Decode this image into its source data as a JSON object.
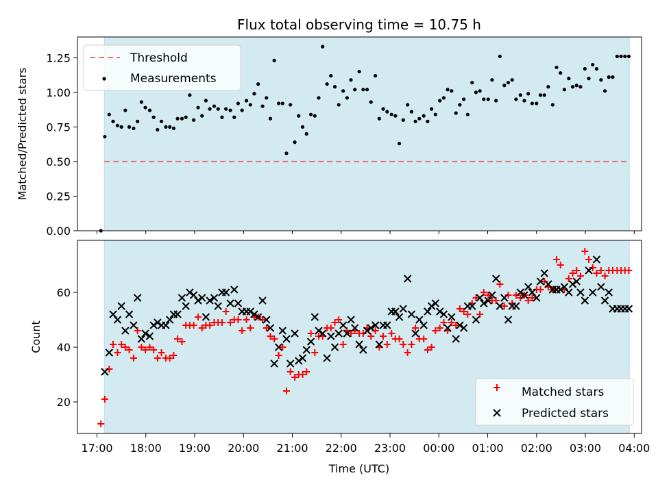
{
  "chart_data": [
    {
      "type": "scatter",
      "title": "Flux total observing time = 10.75 h",
      "xlabel": "",
      "ylabel": "Matched/Predicted stars",
      "xlim_hours": [
        16.6,
        28.15
      ],
      "ylim": [
        0,
        1.4
      ],
      "yticks": [
        0.0,
        0.25,
        0.5,
        0.75,
        1.0,
        1.25
      ],
      "ytick_labels": [
        "0.00",
        "0.25",
        "0.50",
        "0.75",
        "1.00",
        "1.25"
      ],
      "observing_window_hours": [
        17.15,
        27.9
      ],
      "legend": {
        "position": "top-left",
        "entries": [
          "Threshold",
          "Measurements"
        ]
      },
      "threshold": {
        "name": "Threshold",
        "y": 0.5,
        "x_range_hours": [
          17.15,
          27.9
        ],
        "color": "#e8706f",
        "style": "dashed"
      },
      "series": [
        {
          "name": "Measurements",
          "color": "#000000",
          "marker": "dot",
          "x_hours": [
            17.08,
            17.16,
            17.25,
            17.33,
            17.42,
            17.5,
            17.58,
            17.66,
            17.75,
            17.83,
            17.91,
            17.99,
            18.08,
            18.16,
            18.24,
            18.32,
            18.41,
            18.49,
            18.57,
            18.65,
            18.74,
            18.82,
            18.9,
            18.98,
            19.07,
            19.15,
            19.23,
            19.31,
            19.4,
            19.48,
            19.56,
            19.64,
            19.73,
            19.81,
            19.89,
            19.97,
            20.06,
            20.14,
            20.22,
            20.3,
            20.39,
            20.47,
            20.55,
            20.63,
            20.72,
            20.8,
            20.88,
            20.96,
            21.05,
            21.13,
            21.21,
            21.29,
            21.38,
            21.46,
            21.54,
            21.62,
            21.71,
            21.79,
            21.87,
            21.95,
            22.04,
            22.12,
            22.2,
            22.28,
            22.37,
            22.45,
            22.53,
            22.61,
            22.7,
            22.78,
            22.86,
            22.94,
            23.03,
            23.11,
            23.19,
            23.27,
            23.36,
            23.44,
            23.52,
            23.6,
            23.69,
            23.77,
            23.85,
            23.93,
            24.02,
            24.1,
            24.18,
            24.26,
            24.35,
            24.43,
            24.51,
            24.59,
            24.68,
            24.76,
            24.84,
            24.92,
            25.01,
            25.09,
            25.17,
            25.25,
            25.34,
            25.42,
            25.5,
            25.58,
            25.67,
            25.75,
            25.83,
            25.91,
            26.0,
            26.08,
            26.16,
            26.24,
            26.33,
            26.41,
            26.49,
            26.57,
            26.66,
            26.74,
            26.82,
            26.9,
            26.99,
            27.07,
            27.15,
            27.23,
            27.32,
            27.4,
            27.48,
            27.56,
            27.65,
            27.73,
            27.81,
            27.89
          ],
          "y": [
            0.0,
            0.68,
            0.84,
            0.79,
            0.76,
            0.75,
            0.87,
            0.75,
            0.74,
            0.79,
            0.93,
            0.89,
            0.87,
            0.82,
            0.73,
            0.79,
            0.75,
            0.75,
            0.74,
            0.81,
            0.81,
            0.82,
            0.98,
            0.8,
            0.89,
            0.83,
            0.94,
            0.88,
            0.9,
            0.88,
            0.82,
            0.88,
            0.87,
            0.82,
            0.92,
            0.87,
            0.94,
            0.91,
            0.99,
            1.06,
            0.9,
            0.96,
            0.81,
            1.23,
            0.92,
            0.92,
            0.56,
            0.91,
            0.64,
            0.83,
            0.75,
            0.7,
            0.84,
            0.83,
            0.96,
            1.33,
            1.06,
            1.12,
            1.04,
            0.91,
            1.01,
            0.96,
            1.09,
            1.02,
            1.15,
            1.02,
            1.02,
            0.93,
            1.12,
            0.81,
            0.88,
            0.86,
            0.84,
            0.83,
            0.63,
            0.8,
            0.91,
            0.86,
            0.79,
            0.81,
            0.83,
            0.79,
            0.88,
            0.84,
            0.94,
            0.96,
            1.02,
            1.01,
            0.85,
            0.91,
            0.95,
            0.84,
            1.07,
            1.0,
            1.01,
            0.95,
            0.95,
            1.09,
            0.94,
            1.26,
            1.05,
            1.07,
            1.09,
            0.95,
            0.98,
            0.94,
            0.99,
            0.92,
            0.92,
            0.98,
            0.98,
            1.04,
            0.91,
            1.18,
            1.14,
            1.02,
            1.1,
            1.04,
            1.05,
            1.04,
            1.17,
            1.1,
            1.2,
            1.17,
            1.09,
            1.01,
            1.11,
            1.11,
            1.26,
            1.26,
            1.26,
            1.26
          ]
        }
      ]
    },
    {
      "type": "scatter",
      "title": "",
      "xlabel": "Time (UTC)",
      "ylabel": "Count",
      "xlim_hours": [
        16.6,
        28.15
      ],
      "ylim": [
        8.5,
        79
      ],
      "yticks": [
        20,
        40,
        60
      ],
      "ytick_labels": [
        "20",
        "40",
        "60"
      ],
      "xticks_hours": [
        17,
        18,
        19,
        20,
        21,
        22,
        23,
        24,
        25,
        26,
        27,
        28
      ],
      "xtick_labels": [
        "17:00",
        "18:00",
        "19:00",
        "20:00",
        "21:00",
        "22:00",
        "23:00",
        "00:00",
        "01:00",
        "02:00",
        "03:00",
        "04:00"
      ],
      "observing_window_hours": [
        17.15,
        27.9
      ],
      "legend": {
        "position": "bottom-right",
        "entries": [
          "Matched stars",
          "Predicted stars"
        ]
      },
      "series": [
        {
          "name": "Matched stars",
          "color": "#ff0000",
          "marker": "plus",
          "x_hours": [
            17.08,
            17.16,
            17.25,
            17.33,
            17.42,
            17.5,
            17.58,
            17.66,
            17.75,
            17.83,
            17.91,
            17.99,
            18.08,
            18.16,
            18.24,
            18.32,
            18.41,
            18.49,
            18.57,
            18.65,
            18.74,
            18.82,
            18.9,
            18.98,
            19.07,
            19.15,
            19.23,
            19.31,
            19.4,
            19.48,
            19.56,
            19.64,
            19.73,
            19.81,
            19.89,
            19.97,
            20.06,
            20.14,
            20.22,
            20.3,
            20.39,
            20.47,
            20.55,
            20.63,
            20.72,
            20.8,
            20.88,
            20.96,
            21.05,
            21.13,
            21.21,
            21.29,
            21.38,
            21.46,
            21.54,
            21.62,
            21.71,
            21.79,
            21.87,
            21.95,
            22.04,
            22.12,
            22.2,
            22.28,
            22.37,
            22.45,
            22.53,
            22.61,
            22.7,
            22.78,
            22.86,
            22.94,
            23.03,
            23.11,
            23.19,
            23.27,
            23.36,
            23.44,
            23.52,
            23.6,
            23.69,
            23.77,
            23.85,
            23.93,
            24.02,
            24.1,
            24.18,
            24.26,
            24.35,
            24.43,
            24.51,
            24.59,
            24.68,
            24.76,
            24.84,
            24.92,
            25.01,
            25.09,
            25.17,
            25.25,
            25.34,
            25.42,
            25.5,
            25.58,
            25.67,
            25.75,
            25.83,
            25.91,
            26.0,
            26.08,
            26.16,
            26.24,
            26.33,
            26.41,
            26.49,
            26.57,
            26.66,
            26.74,
            26.82,
            26.9,
            26.99,
            27.07,
            27.15,
            27.23,
            27.32,
            27.4,
            27.48,
            27.56,
            27.65,
            27.73,
            27.81,
            27.89
          ],
          "y": [
            12,
            21,
            32,
            41,
            38,
            41,
            40,
            39,
            36,
            46,
            40,
            39,
            40,
            39,
            36,
            38,
            36,
            36,
            37,
            43,
            42,
            48,
            48,
            48,
            51,
            47,
            48,
            48,
            49,
            49,
            49,
            53,
            49,
            50,
            50,
            46,
            50,
            47,
            51,
            51,
            50,
            47,
            44,
            43,
            37,
            40,
            24,
            31,
            29,
            30,
            30,
            31,
            45,
            38,
            44,
            44,
            47,
            47,
            49,
            50,
            41,
            46,
            45,
            46,
            45,
            45,
            47,
            44,
            46,
            40,
            44,
            41,
            45,
            43,
            43,
            41,
            38,
            41,
            47,
            43,
            43,
            39,
            40,
            46,
            47,
            49,
            46,
            49,
            48,
            54,
            53,
            52,
            56,
            58,
            52,
            60,
            59,
            57,
            57,
            63,
            55,
            59,
            56,
            59,
            58,
            59,
            57,
            58,
            61,
            61,
            64,
            62,
            61,
            72,
            70,
            61,
            65,
            67,
            68,
            66,
            75,
            72,
            69,
            67,
            68,
            66,
            68,
            68,
            68,
            68,
            68,
            68
          ]
        },
        {
          "name": "Predicted stars",
          "color": "#000000",
          "marker": "x",
          "x_hours": [
            17.08,
            17.16,
            17.25,
            17.33,
            17.42,
            17.5,
            17.58,
            17.66,
            17.75,
            17.83,
            17.91,
            17.99,
            18.08,
            18.16,
            18.24,
            18.32,
            18.41,
            18.49,
            18.57,
            18.65,
            18.74,
            18.82,
            18.9,
            18.98,
            19.07,
            19.15,
            19.23,
            19.31,
            19.4,
            19.48,
            19.56,
            19.64,
            19.73,
            19.81,
            19.89,
            19.97,
            20.06,
            20.14,
            20.22,
            20.3,
            20.39,
            20.47,
            20.55,
            20.63,
            20.72,
            20.8,
            20.88,
            20.96,
            21.05,
            21.13,
            21.21,
            21.29,
            21.38,
            21.46,
            21.54,
            21.62,
            21.71,
            21.79,
            21.87,
            21.95,
            22.04,
            22.12,
            22.2,
            22.28,
            22.37,
            22.45,
            22.53,
            22.61,
            22.7,
            22.78,
            22.86,
            22.94,
            23.03,
            23.11,
            23.19,
            23.27,
            23.36,
            23.44,
            23.52,
            23.6,
            23.69,
            23.77,
            23.85,
            23.93,
            24.02,
            24.1,
            24.18,
            24.26,
            24.35,
            24.43,
            24.51,
            24.59,
            24.68,
            24.76,
            24.84,
            24.92,
            25.01,
            25.09,
            25.17,
            25.25,
            25.34,
            25.42,
            25.5,
            25.58,
            25.67,
            25.75,
            25.83,
            25.91,
            26.0,
            26.08,
            26.16,
            26.24,
            26.33,
            26.41,
            26.49,
            26.57,
            26.66,
            26.74,
            26.82,
            26.9,
            26.99,
            27.07,
            27.15,
            27.23,
            27.32,
            27.4,
            27.48,
            27.56,
            27.65,
            27.73,
            27.81,
            27.89
          ],
          "y": [
            null,
            31,
            38,
            52,
            50,
            55,
            46,
            52,
            48,
            58,
            43,
            45,
            44,
            48,
            49,
            48,
            48,
            50,
            52,
            52,
            58,
            55,
            60,
            59,
            57,
            58,
            51,
            57,
            58,
            55,
            60,
            60,
            56,
            61,
            56,
            53,
            53,
            53,
            52,
            51,
            57,
            50,
            47,
            34,
            40,
            46,
            43,
            34,
            45,
            35,
            36,
            39,
            42,
            51,
            46,
            45,
            36,
            44,
            40,
            45,
            48,
            45,
            50,
            47,
            41,
            39,
            46,
            47,
            48,
            41,
            48,
            48,
            53,
            53,
            51,
            54,
            65,
            52,
            45,
            50,
            48,
            53,
            55,
            56,
            53,
            52,
            47,
            51,
            43,
            48,
            47,
            55,
            55,
            50,
            58,
            56,
            57,
            59,
            65,
            55,
            58,
            50,
            55,
            55,
            60,
            59,
            62,
            60,
            58,
            64,
            67,
            63,
            61,
            61,
            61,
            62,
            60,
            63,
            64,
            60,
            57,
            68,
            60,
            72,
            62,
            57,
            60,
            54,
            54,
            54,
            54,
            54
          ]
        }
      ]
    }
  ],
  "colors": {
    "window_fill": "#d3eaf0",
    "window_edge": "#b8dbe5",
    "threshold_line": "#e8706f"
  }
}
